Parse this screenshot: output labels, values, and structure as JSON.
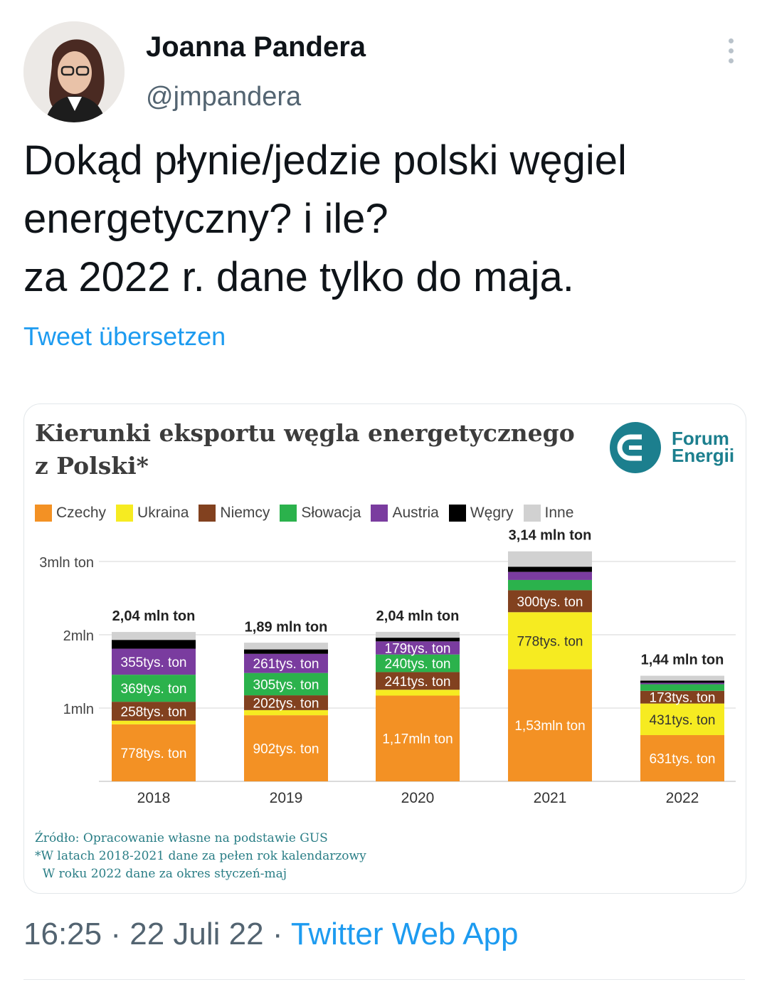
{
  "author": {
    "name": "Joanna Pandera",
    "handle": "@jmpandera"
  },
  "tweet": {
    "lines": [
      "Dokąd płynie/jedzie polski węgiel",
      "energetyczny? i ile?",
      "za 2022 r. dane tylko do maja."
    ],
    "translate_label": "Tweet übersetzen"
  },
  "card": {
    "logo_text": [
      "Forum",
      "Energii"
    ],
    "source_lines": [
      "Źródło: Opracowanie własne na podstawie GUS",
      "*W latach 2018-2021 dane za pełen rok kalendarzowy",
      "  W roku 2022 dane za okres styczeń-maj"
    ]
  },
  "chart_data": {
    "type": "bar",
    "stacked": true,
    "title": "Kierunki eksportu węgla energetycznego z Polski*",
    "unit": "mln ton",
    "categories": [
      "2018",
      "2019",
      "2020",
      "2021",
      "2022"
    ],
    "y_ticks": [
      {
        "value": 3,
        "label": "3mln ton"
      },
      {
        "value": 2,
        "label": "2mln"
      },
      {
        "value": 1,
        "label": "1mln"
      }
    ],
    "ylim": [
      0,
      3.14
    ],
    "grid": true,
    "legend_position": "top",
    "totals": [
      {
        "value": 2.04,
        "label": "2,04 mln ton"
      },
      {
        "value": 1.89,
        "label": "1,89 mln ton"
      },
      {
        "value": 2.04,
        "label": "2,04 mln ton"
      },
      {
        "value": 3.14,
        "label": "3,14 mln ton"
      },
      {
        "value": 1.44,
        "label": "1,44 mln ton"
      }
    ],
    "series": [
      {
        "name": "Czechy",
        "color": "#f39124",
        "values": [
          0.778,
          0.902,
          1.17,
          1.53,
          0.631
        ],
        "labels": [
          "778tys. ton",
          "902tys. ton",
          "1,17mln ton",
          "1,53mln ton",
          "631tys. ton"
        ]
      },
      {
        "name": "Ukraina",
        "color": "#f6eb21",
        "values": [
          0.05,
          0.07,
          0.08,
          0.778,
          0.431
        ],
        "labels": [
          "",
          "",
          "",
          "778tys. ton",
          "431tys. ton"
        ]
      },
      {
        "name": "Niemcy",
        "color": "#82411f",
        "values": [
          0.258,
          0.202,
          0.241,
          0.3,
          0.173
        ],
        "labels": [
          "258tys. ton",
          "202tys. ton",
          "241tys. ton",
          "300tys. ton",
          "173tys. ton"
        ]
      },
      {
        "name": "Słowacja",
        "color": "#2bb24c",
        "values": [
          0.369,
          0.305,
          0.24,
          0.14,
          0.09
        ],
        "labels": [
          "369tys. ton",
          "305tys. ton",
          "240tys. ton",
          "",
          ""
        ]
      },
      {
        "name": "Austria",
        "color": "#7a3c9f",
        "values": [
          0.355,
          0.261,
          0.179,
          0.11,
          0.02
        ],
        "labels": [
          "355tys. ton",
          "261tys. ton",
          "179tys. ton",
          "",
          ""
        ]
      },
      {
        "name": "Węgry",
        "color": "#000000",
        "values": [
          0.12,
          0.06,
          0.05,
          0.07,
          0.03
        ],
        "labels": [
          "",
          "",
          "",
          "",
          ""
        ]
      },
      {
        "name": "Inne",
        "color": "#d1d1d1",
        "values": [
          0.108,
          0.092,
          0.08,
          0.21,
          0.066
        ],
        "labels": [
          "",
          "",
          "",
          "",
          ""
        ]
      }
    ]
  },
  "meta": {
    "time": "16:25",
    "date": "22 Juli 22",
    "source_app": "Twitter Web App",
    "separator": "·"
  }
}
